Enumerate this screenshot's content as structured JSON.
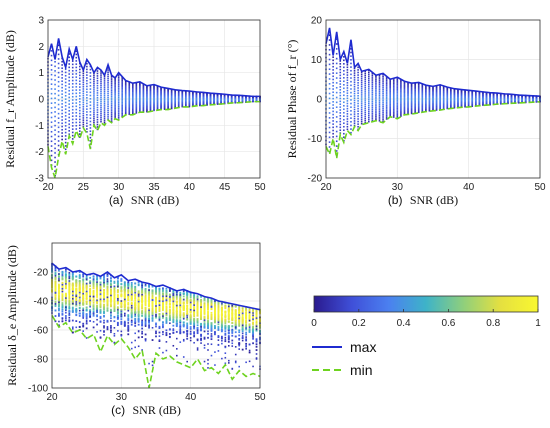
{
  "chart_data": [
    {
      "type": "scatter",
      "panel": "a",
      "caption_prefix": "(a)",
      "xlabel": "SNR  (dB)",
      "ylabel": "Residual f_r Amplitude (dB)",
      "xlim": [
        20,
        50
      ],
      "ylim": [
        -3,
        3
      ],
      "xticks": [
        20,
        25,
        30,
        35,
        40,
        45,
        50
      ],
      "yticks": [
        -3,
        -2,
        -1,
        0,
        1,
        2,
        3
      ],
      "grid": true,
      "series": [
        {
          "name": "max",
          "x": [
            20,
            20.5,
            21,
            21.5,
            22,
            22.5,
            23,
            23.5,
            24,
            24.5,
            25,
            25.5,
            26,
            26.5,
            27,
            27.5,
            28,
            28.5,
            29,
            29.5,
            30,
            31,
            32,
            33,
            34,
            35,
            36,
            37,
            38,
            39,
            40,
            41,
            42,
            43,
            44,
            45,
            46,
            47,
            48,
            49,
            50
          ],
          "y": [
            1.6,
            2.1,
            1.5,
            2.3,
            1.6,
            1.2,
            1.9,
            1.5,
            2.0,
            1.4,
            1.1,
            1.5,
            1.3,
            1.0,
            1.2,
            1.1,
            0.9,
            1.3,
            0.9,
            0.8,
            1.0,
            0.7,
            0.6,
            0.65,
            0.5,
            0.55,
            0.45,
            0.4,
            0.35,
            0.32,
            0.3,
            0.27,
            0.25,
            0.22,
            0.2,
            0.18,
            0.15,
            0.14,
            0.12,
            0.1,
            0.1
          ]
        },
        {
          "name": "min",
          "x": [
            20,
            20.5,
            21,
            21.5,
            22,
            22.5,
            23,
            23.5,
            24,
            24.5,
            25,
            25.5,
            26,
            26.5,
            27,
            27.5,
            28,
            28.5,
            29,
            29.5,
            30,
            31,
            32,
            33,
            34,
            35,
            36,
            37,
            38,
            39,
            40,
            41,
            42,
            43,
            44,
            45,
            46,
            47,
            48,
            49,
            50
          ],
          "y": [
            -1.8,
            -2.6,
            -3.0,
            -2.2,
            -1.6,
            -2.1,
            -1.4,
            -1.7,
            -1.2,
            -1.5,
            -1.1,
            -1.3,
            -1.9,
            -1.0,
            -1.2,
            -0.9,
            -1.0,
            -0.8,
            -0.9,
            -0.75,
            -0.8,
            -0.6,
            -0.6,
            -0.5,
            -0.5,
            -0.45,
            -0.4,
            -0.4,
            -0.35,
            -0.3,
            -0.3,
            -0.26,
            -0.25,
            -0.22,
            -0.2,
            -0.18,
            -0.15,
            -0.14,
            -0.12,
            -0.1,
            -0.1
          ]
        }
      ]
    },
    {
      "type": "scatter",
      "panel": "b",
      "caption_prefix": "(b)",
      "xlabel": "SNR  (dB)",
      "ylabel": "Residual Phase of f_r (°)",
      "xlim": [
        20,
        50
      ],
      "ylim": [
        -20,
        20
      ],
      "xticks": [
        20,
        30,
        40,
        50
      ],
      "yticks": [
        -20,
        -10,
        0,
        10,
        20
      ],
      "grid": true,
      "series": [
        {
          "name": "max",
          "x": [
            20,
            20.5,
            21,
            21.5,
            22,
            22.5,
            23,
            23.5,
            24,
            24.5,
            25,
            26,
            27,
            28,
            29,
            30,
            31,
            32,
            33,
            34,
            35,
            36,
            37,
            38,
            39,
            40,
            41,
            42,
            43,
            44,
            45,
            46,
            47,
            48,
            49,
            50
          ],
          "y": [
            14,
            18,
            11,
            17,
            10,
            12,
            9,
            15,
            8,
            9,
            7,
            7.5,
            6,
            6.5,
            5,
            5.5,
            4.5,
            4,
            4.2,
            3.5,
            3.2,
            3.6,
            3,
            2.6,
            2.4,
            2.2,
            2,
            1.8,
            1.6,
            1.5,
            1.3,
            1.2,
            1,
            0.9,
            0.8,
            0.7
          ]
        },
        {
          "name": "min",
          "x": [
            20,
            20.5,
            21,
            21.5,
            22,
            22.5,
            23,
            23.5,
            24,
            24.5,
            25,
            26,
            27,
            28,
            29,
            30,
            31,
            32,
            33,
            34,
            35,
            36,
            37,
            38,
            39,
            40,
            41,
            42,
            43,
            44,
            45,
            46,
            47,
            48,
            49,
            50
          ],
          "y": [
            -12,
            -14,
            -10,
            -15,
            -9,
            -11,
            -8,
            -9,
            -7,
            -8,
            -6.5,
            -6,
            -5.5,
            -6,
            -4.5,
            -5,
            -4,
            -3.8,
            -3.5,
            -3.2,
            -3,
            -2.8,
            -2.5,
            -2.3,
            -2.1,
            -2,
            -1.8,
            -1.6,
            -1.5,
            -1.3,
            -1.2,
            -1.1,
            -1,
            -0.9,
            -0.8,
            -0.7
          ]
        }
      ]
    },
    {
      "type": "heatmap",
      "panel": "c",
      "caption_prefix": "(c)",
      "xlabel": "SNR  (dB)",
      "ylabel": "Residual δ_e Amplitude (dB)",
      "xlim": [
        20,
        50
      ],
      "ylim": [
        -100,
        0
      ],
      "xticks": [
        20,
        30,
        40,
        50
      ],
      "yticks": [
        -100,
        -80,
        -60,
        -40,
        -20
      ],
      "grid": true,
      "density_center_start": -32,
      "density_center_end": -52,
      "series": [
        {
          "name": "max",
          "x": [
            20,
            21,
            22,
            23,
            24,
            25,
            26,
            27,
            28,
            29,
            30,
            31,
            32,
            33,
            34,
            35,
            36,
            37,
            38,
            39,
            40,
            41,
            42,
            43,
            44,
            45,
            46,
            47,
            48,
            49,
            50
          ],
          "y": [
            -14,
            -18,
            -17,
            -20,
            -19,
            -22,
            -21,
            -23,
            -20,
            -24,
            -22,
            -26,
            -25,
            -27,
            -28,
            -30,
            -29,
            -31,
            -33,
            -32,
            -34,
            -35,
            -37,
            -38,
            -40,
            -41,
            -42,
            -43,
            -44,
            -45,
            -46
          ]
        },
        {
          "name": "min",
          "x": [
            20,
            21,
            22,
            23,
            24,
            25,
            26,
            27,
            28,
            29,
            30,
            31,
            32,
            33,
            34,
            35,
            36,
            37,
            38,
            39,
            40,
            41,
            42,
            43,
            44,
            45,
            46,
            47,
            48,
            49,
            50
          ],
          "y": [
            -50,
            -58,
            -55,
            -62,
            -60,
            -66,
            -63,
            -75,
            -64,
            -70,
            -66,
            -72,
            -80,
            -74,
            -100,
            -76,
            -80,
            -78,
            -82,
            -84,
            -86,
            -80,
            -88,
            -86,
            -90,
            -84,
            -94,
            -88,
            -92,
            -90,
            -92
          ]
        }
      ]
    },
    {
      "type": "colorbar",
      "ticks": [
        0,
        0.2,
        0.4,
        0.6,
        0.8,
        1
      ],
      "range": [
        0,
        1
      ],
      "colors": [
        "#2a1a8e",
        "#3f4fd8",
        "#4b80f0",
        "#3eb3c8",
        "#8fcf7c",
        "#e5e040",
        "#f9f830"
      ]
    }
  ],
  "legend": {
    "items": [
      {
        "label": "max",
        "color": "#1f2bd0",
        "dash": "solid"
      },
      {
        "label": "min",
        "color": "#6ed31f",
        "dash": "dashed"
      }
    ]
  },
  "colors": {
    "max": "#1f2bd0",
    "min": "#6ed31f",
    "axis": "#333333",
    "grid": "#e6e6e6"
  }
}
